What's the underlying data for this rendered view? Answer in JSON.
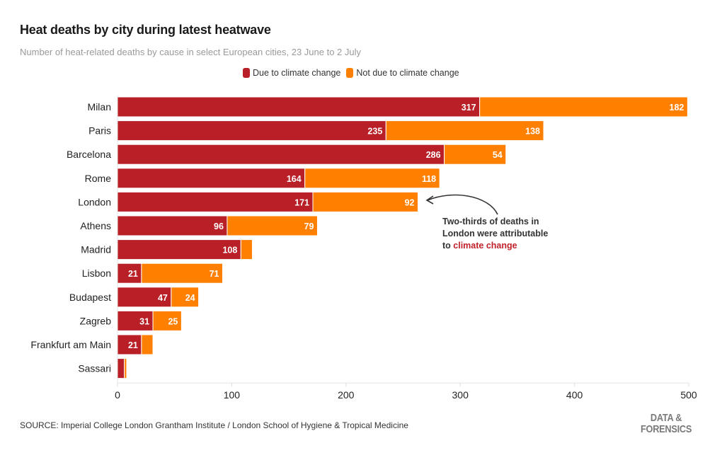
{
  "header": {
    "title": "Heat deaths by city during latest heatwave",
    "subtitle": "Number of heat-related deaths by cause in select European cities, 23 June to 2 July"
  },
  "legend": [
    {
      "label": "Due to climate change",
      "color": "#b81f26"
    },
    {
      "label": "Not due to climate change",
      "color": "#ff7f00"
    }
  ],
  "annotation": {
    "line1": "Two-thirds of deaths in",
    "line2": "London were attributable",
    "line3_prefix": "to ",
    "line3_highlight": "climate change",
    "points_to": "London"
  },
  "footer": {
    "source": "SOURCE: Imperial College London Grantham Institute / London School of Hygiene & Tropical Medicine",
    "brand_line1": "DATA &",
    "brand_line2": "FORENSICS"
  },
  "chart_data": {
    "type": "bar",
    "orientation": "horizontal",
    "stacked": true,
    "title": "Heat deaths by city during latest heatwave",
    "subtitle": "Number of heat-related deaths by cause in select European cities, 23 June to 2 July",
    "xlabel": "",
    "ylabel": "",
    "xlim": [
      0,
      500
    ],
    "xticks": [
      0,
      100,
      200,
      300,
      400,
      500
    ],
    "grid": false,
    "legend_position": "top-center",
    "categories": [
      "Milan",
      "Paris",
      "Barcelona",
      "Rome",
      "London",
      "Athens",
      "Madrid",
      "Lisbon",
      "Budapest",
      "Zagreb",
      "Frankfurt am Main",
      "Sassari"
    ],
    "series": [
      {
        "name": "Due to climate change",
        "color": "#b81f26",
        "values": [
          317,
          235,
          286,
          164,
          171,
          96,
          108,
          21,
          47,
          31,
          21,
          6
        ],
        "labels": [
          "317",
          "235",
          "286",
          "164",
          "171",
          "96",
          "108",
          "21",
          "47",
          "31",
          "21",
          ""
        ]
      },
      {
        "name": "Not due to climate change",
        "color": "#ff7f00",
        "values": [
          182,
          138,
          54,
          118,
          92,
          79,
          10,
          71,
          24,
          25,
          10,
          2
        ],
        "labels": [
          "182",
          "138",
          "54",
          "118",
          "92",
          "79",
          "",
          "71",
          "24",
          "25",
          "",
          ""
        ]
      }
    ]
  }
}
